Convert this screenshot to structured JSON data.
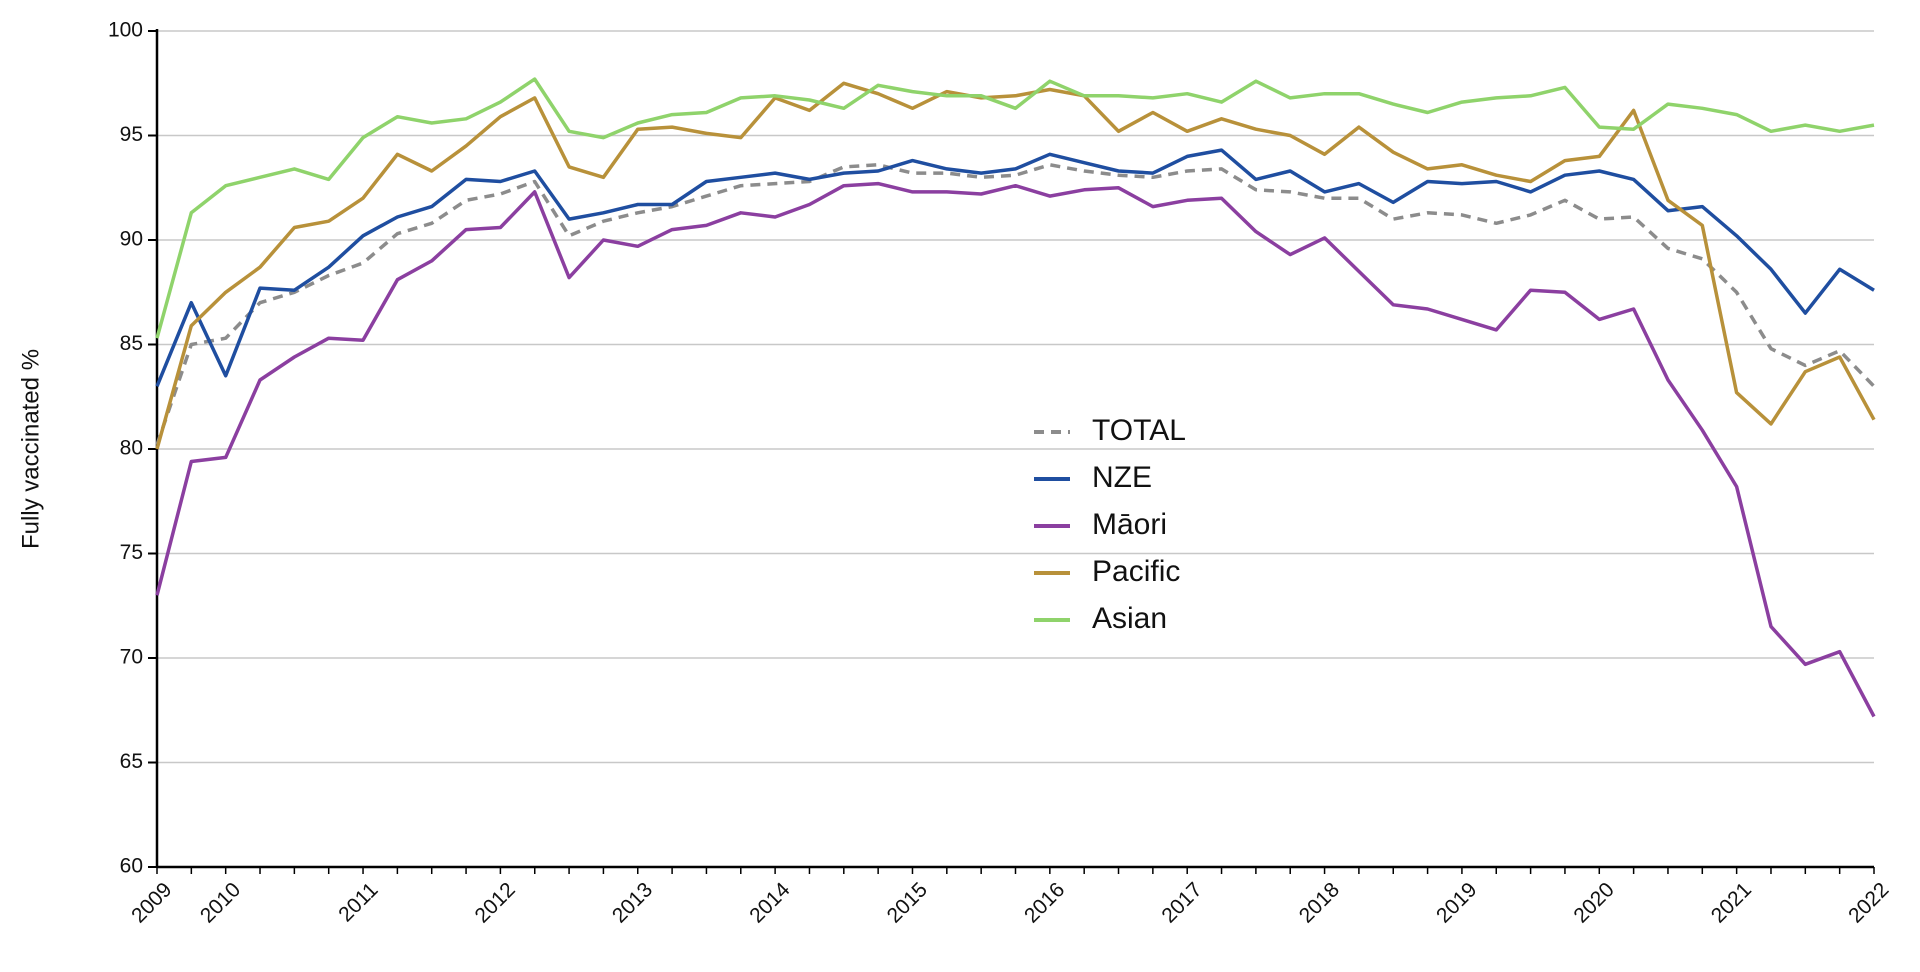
{
  "chart_data": {
    "type": "line",
    "y_label": "Fully vaccinated %",
    "categories": [
      "2009",
      null,
      "2010",
      null,
      null,
      null,
      "2011",
      null,
      null,
      null,
      "2012",
      null,
      null,
      null,
      "2013",
      null,
      null,
      null,
      "2014",
      null,
      null,
      null,
      "2015",
      null,
      null,
      null,
      "2016",
      null,
      null,
      null,
      "2017",
      null,
      null,
      null,
      "2018",
      null,
      null,
      null,
      "2019",
      null,
      null,
      null,
      "2020",
      null,
      null,
      null,
      "2021",
      null,
      null,
      null,
      "2022"
    ],
    "series": [
      {
        "name": "TOTAL",
        "color": "#8c8c8c",
        "dashed": true,
        "values": [
          80.2,
          85.0,
          85.3,
          87.0,
          87.5,
          88.3,
          88.9,
          90.3,
          90.8,
          91.9,
          92.2,
          92.8,
          90.2,
          90.9,
          91.3,
          91.6,
          92.1,
          92.6,
          92.7,
          92.8,
          93.5,
          93.6,
          93.2,
          93.2,
          93.0,
          93.1,
          93.6,
          93.3,
          93.1,
          93.0,
          93.3,
          93.4,
          92.4,
          92.3,
          92.0,
          92.0,
          91.0,
          91.3,
          91.2,
          90.8,
          91.2,
          91.9,
          91.0,
          91.1,
          89.6,
          89.1,
          87.5,
          84.8,
          84.0,
          84.7,
          83.0
        ]
      },
      {
        "name": "NZE",
        "color": "#1f4ea0",
        "dashed": false,
        "values": [
          83.0,
          87.0,
          83.5,
          87.7,
          87.6,
          88.7,
          90.2,
          91.1,
          91.6,
          92.9,
          92.8,
          93.3,
          91.0,
          91.3,
          91.7,
          91.7,
          92.8,
          93.0,
          93.2,
          92.9,
          93.2,
          93.3,
          93.8,
          93.4,
          93.2,
          93.4,
          94.1,
          93.7,
          93.3,
          93.2,
          94.0,
          94.3,
          92.9,
          93.3,
          92.3,
          92.7,
          91.8,
          92.8,
          92.7,
          92.8,
          92.3,
          93.1,
          93.3,
          92.9,
          91.4,
          91.6,
          90.2,
          88.6,
          86.5,
          88.6,
          87.6
        ]
      },
      {
        "name": "Māori",
        "color": "#8b3fa0",
        "dashed": false,
        "values": [
          73.0,
          79.4,
          79.6,
          83.3,
          84.4,
          85.3,
          85.2,
          88.1,
          89.0,
          90.5,
          90.6,
          92.3,
          88.2,
          90.0,
          89.7,
          90.5,
          90.7,
          91.3,
          91.1,
          91.7,
          92.6,
          92.7,
          92.3,
          92.3,
          92.2,
          92.6,
          92.1,
          92.4,
          92.5,
          91.6,
          91.9,
          92.0,
          90.4,
          89.3,
          90.1,
          88.5,
          86.9,
          86.7,
          86.2,
          85.7,
          87.6,
          87.5,
          86.2,
          86.7,
          83.3,
          80.9,
          78.2,
          71.5,
          69.7,
          70.3,
          67.2
        ]
      },
      {
        "name": "Pacific",
        "color": "#b8913a",
        "dashed": false,
        "values": [
          80.0,
          85.9,
          87.5,
          88.7,
          90.6,
          90.9,
          92.0,
          94.1,
          93.3,
          94.5,
          95.9,
          96.8,
          93.5,
          93.0,
          95.3,
          95.4,
          95.1,
          94.9,
          96.8,
          96.2,
          97.5,
          97.0,
          96.3,
          97.1,
          96.8,
          96.9,
          97.2,
          96.9,
          95.2,
          96.1,
          95.2,
          95.8,
          95.3,
          95.0,
          94.1,
          95.4,
          94.2,
          93.4,
          93.6,
          93.1,
          92.8,
          93.8,
          94.0,
          96.2,
          91.9,
          90.7,
          82.7,
          81.2,
          83.7,
          84.4,
          81.4
        ]
      },
      {
        "name": "Asian",
        "color": "#8fd36b",
        "dashed": false,
        "values": [
          85.3,
          91.3,
          92.6,
          93.0,
          93.4,
          92.9,
          94.9,
          95.9,
          95.6,
          95.8,
          96.6,
          97.7,
          95.2,
          94.9,
          95.6,
          96.0,
          96.1,
          96.8,
          96.9,
          96.7,
          96.3,
          97.4,
          97.1,
          96.9,
          96.9,
          96.3,
          97.6,
          96.9,
          96.9,
          96.8,
          97.0,
          96.6,
          97.6,
          96.8,
          97.0,
          97.0,
          96.5,
          96.1,
          96.6,
          96.8,
          96.9,
          97.3,
          95.4,
          95.3,
          96.5,
          96.3,
          96.0,
          95.2,
          95.5,
          95.2,
          95.5
        ]
      }
    ],
    "ylim": [
      60,
      100
    ],
    "yticks": [
      60,
      65,
      70,
      75,
      80,
      85,
      90,
      95,
      100
    ],
    "grid": true
  }
}
